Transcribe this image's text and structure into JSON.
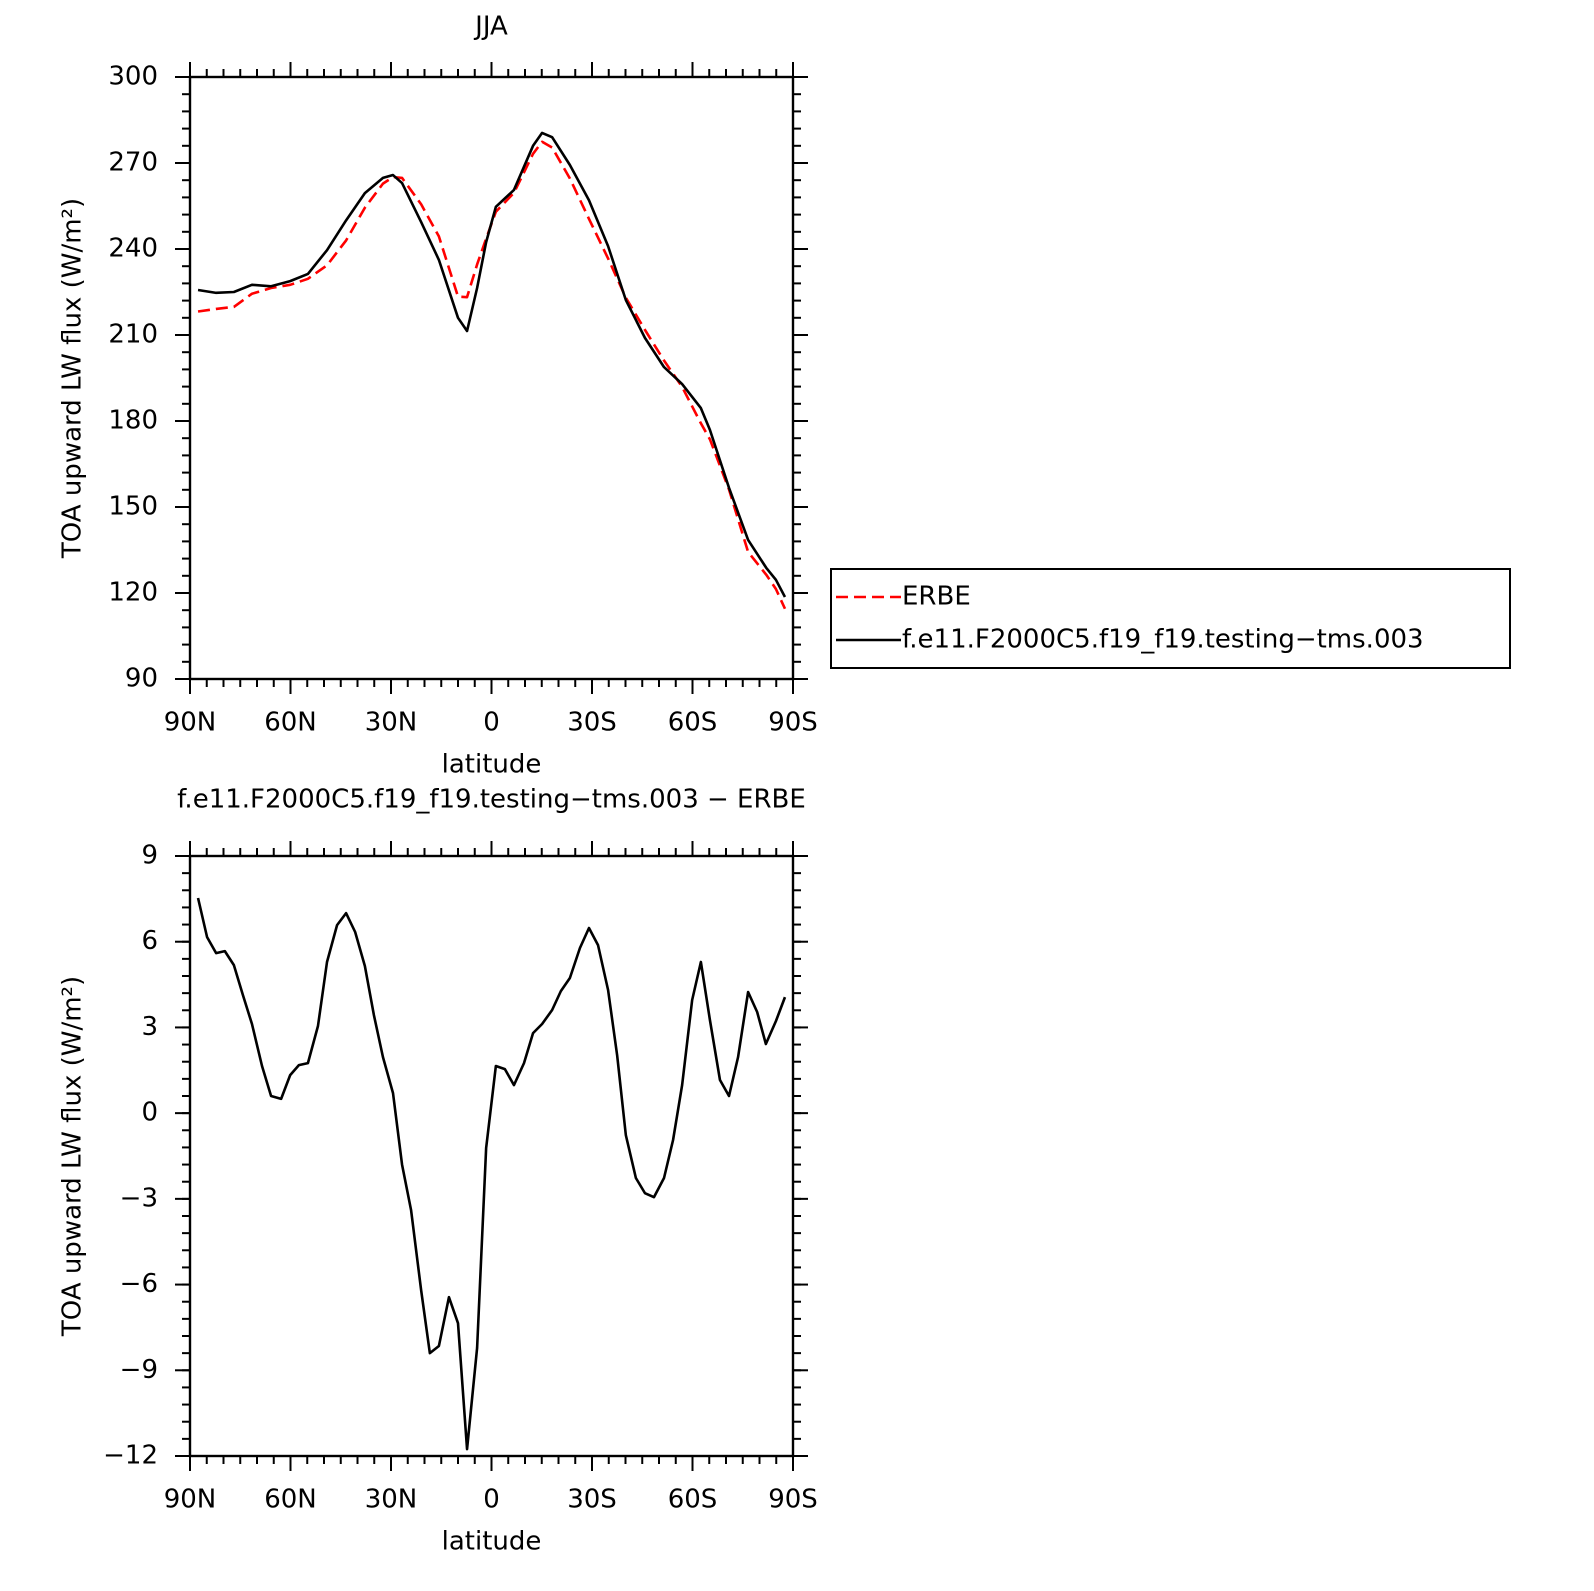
{
  "chart_data": [
    {
      "type": "line",
      "title": "JJA",
      "xlabel": "latitude",
      "ylabel": "TOA upward LW flux (W/m²)",
      "x": [
        87.6,
        82.2,
        76.9,
        71.5,
        65.8,
        60.1,
        54.8,
        49.1,
        43.4,
        37.8,
        32.4,
        29.4,
        26.7,
        21.0,
        15.7,
        10.0,
        7.3,
        4.3,
        1.6,
        -1.3,
        -6.7,
        -12.4,
        -15.1,
        -18.1,
        -23.4,
        -29.1,
        -34.8,
        -40.1,
        -45.8,
        -51.5,
        -56.9,
        -62.5,
        -65.2,
        -70.9,
        -76.6,
        -82.0,
        -84.9,
        -87.6
      ],
      "series": [
        {
          "name": "ERBE",
          "color": "#ff0000",
          "dash": true,
          "values": [
            218.2,
            219.1,
            219.8,
            224.4,
            226.4,
            227.5,
            229.6,
            234.3,
            243,
            254.4,
            262.8,
            265.1,
            264.8,
            255.6,
            244.4,
            223.4,
            223.2,
            234.6,
            243.6,
            253,
            259.6,
            273.2,
            277.4,
            275.4,
            264.6,
            250.5,
            236.7,
            223,
            211.8,
            201.1,
            191.9,
            179.2,
            173.6,
            156.1,
            134.3,
            126.4,
            121.4,
            114.5
          ]
        },
        {
          "name": "f.e11.F2000C5.f19_f19.testing−tms.003",
          "color": "#000000",
          "dash": false,
          "values": [
            225.7,
            224.7,
            225,
            227.5,
            227,
            228.8,
            231.3,
            239.6,
            250,
            259.5,
            264.8,
            265.8,
            263,
            249.4,
            236.2,
            216,
            211.4,
            226.4,
            242.4,
            254.7,
            260.6,
            276,
            280.5,
            279,
            269.3,
            257,
            241,
            222.2,
            209,
            198.8,
            192.9,
            184.5,
            176.9,
            156.7,
            138.5,
            128.8,
            124.6,
            118.6
          ]
        }
      ],
      "xlim": [
        90,
        -90
      ],
      "xticks": [
        {
          "value": 90,
          "label": "90N"
        },
        {
          "value": 60,
          "label": "60N"
        },
        {
          "value": 30,
          "label": "30N"
        },
        0,
        {
          "value": -30,
          "label": "30S"
        },
        {
          "value": -60,
          "label": "60S"
        },
        {
          "value": -90,
          "label": "90S"
        }
      ],
      "minor_xstep": 5,
      "ylim": [
        90,
        300
      ],
      "yticks": [
        90,
        120,
        150,
        180,
        210,
        240,
        270,
        300
      ],
      "minor_ystep": 6,
      "legend": "right"
    },
    {
      "type": "line",
      "title": "f.e11.F2000C5.f19_f19.testing−tms.003 − ERBE",
      "xlabel": "latitude",
      "ylabel": "TOA upward LW flux (W/m²)",
      "x": [
        87.6,
        84.9,
        82.2,
        79.6,
        76.9,
        74.2,
        71.5,
        68.5,
        65.8,
        62.8,
        60.1,
        57.5,
        54.8,
        51.8,
        49.1,
        46.1,
        43.4,
        40.7,
        37.8,
        35.1,
        32.4,
        29.4,
        26.7,
        24.0,
        21.0,
        18.4,
        15.7,
        12.7,
        10.0,
        7.3,
        4.3,
        1.6,
        -1.3,
        -4.0,
        -6.7,
        -9.7,
        -12.4,
        -15.1,
        -18.1,
        -20.7,
        -23.4,
        -26.4,
        -29.1,
        -31.8,
        -34.8,
        -37.5,
        -40.1,
        -43.1,
        -45.8,
        -48.5,
        -51.5,
        -54.2,
        -56.9,
        -59.9,
        -62.5,
        -65.2,
        -68.2,
        -70.9,
        -73.6,
        -76.6,
        -79.3,
        -81.9,
        -84.9,
        -87.6
      ],
      "values": [
        7.53,
        6.16,
        5.6,
        5.67,
        5.18,
        4.13,
        3.12,
        1.65,
        0.6,
        0.5,
        1.33,
        1.68,
        1.75,
        3.05,
        5.29,
        6.58,
        7.0,
        6.34,
        5.15,
        3.43,
        1.96,
        0.7,
        -1.8,
        -3.4,
        -6.2,
        -8.4,
        -8.15,
        -6.44,
        -7.35,
        -11.76,
        -8.22,
        -1.22,
        1.65,
        1.54,
        0.98,
        1.75,
        2.8,
        3.12,
        3.61,
        4.27,
        4.73,
        5.78,
        6.48,
        5.88,
        4.31,
        2.03,
        -0.77,
        -2.27,
        -2.8,
        -2.94,
        -2.27,
        -0.94,
        0.98,
        3.96,
        5.29,
        3.26,
        1.16,
        0.6,
        1.96,
        4.24,
        3.54,
        2.42,
        3.22,
        4.06
      ],
      "color": "#000000",
      "xlim": [
        90,
        -90
      ],
      "xticks": [
        {
          "value": 90,
          "label": "90N"
        },
        {
          "value": 60,
          "label": "60N"
        },
        {
          "value": 30,
          "label": "30N"
        },
        0,
        {
          "value": -30,
          "label": "30S"
        },
        {
          "value": -60,
          "label": "60S"
        },
        {
          "value": -90,
          "label": "90S"
        }
      ],
      "minor_xstep": 5,
      "ylim": [
        -12,
        9
      ],
      "yticks": [
        {
          "value": -12,
          "label": "−12"
        },
        {
          "value": -9,
          "label": "−9"
        },
        {
          "value": -6,
          "label": "−6"
        },
        {
          "value": -3,
          "label": "−3"
        },
        0,
        3,
        6,
        9
      ],
      "minor_ystep": 0.6
    }
  ]
}
